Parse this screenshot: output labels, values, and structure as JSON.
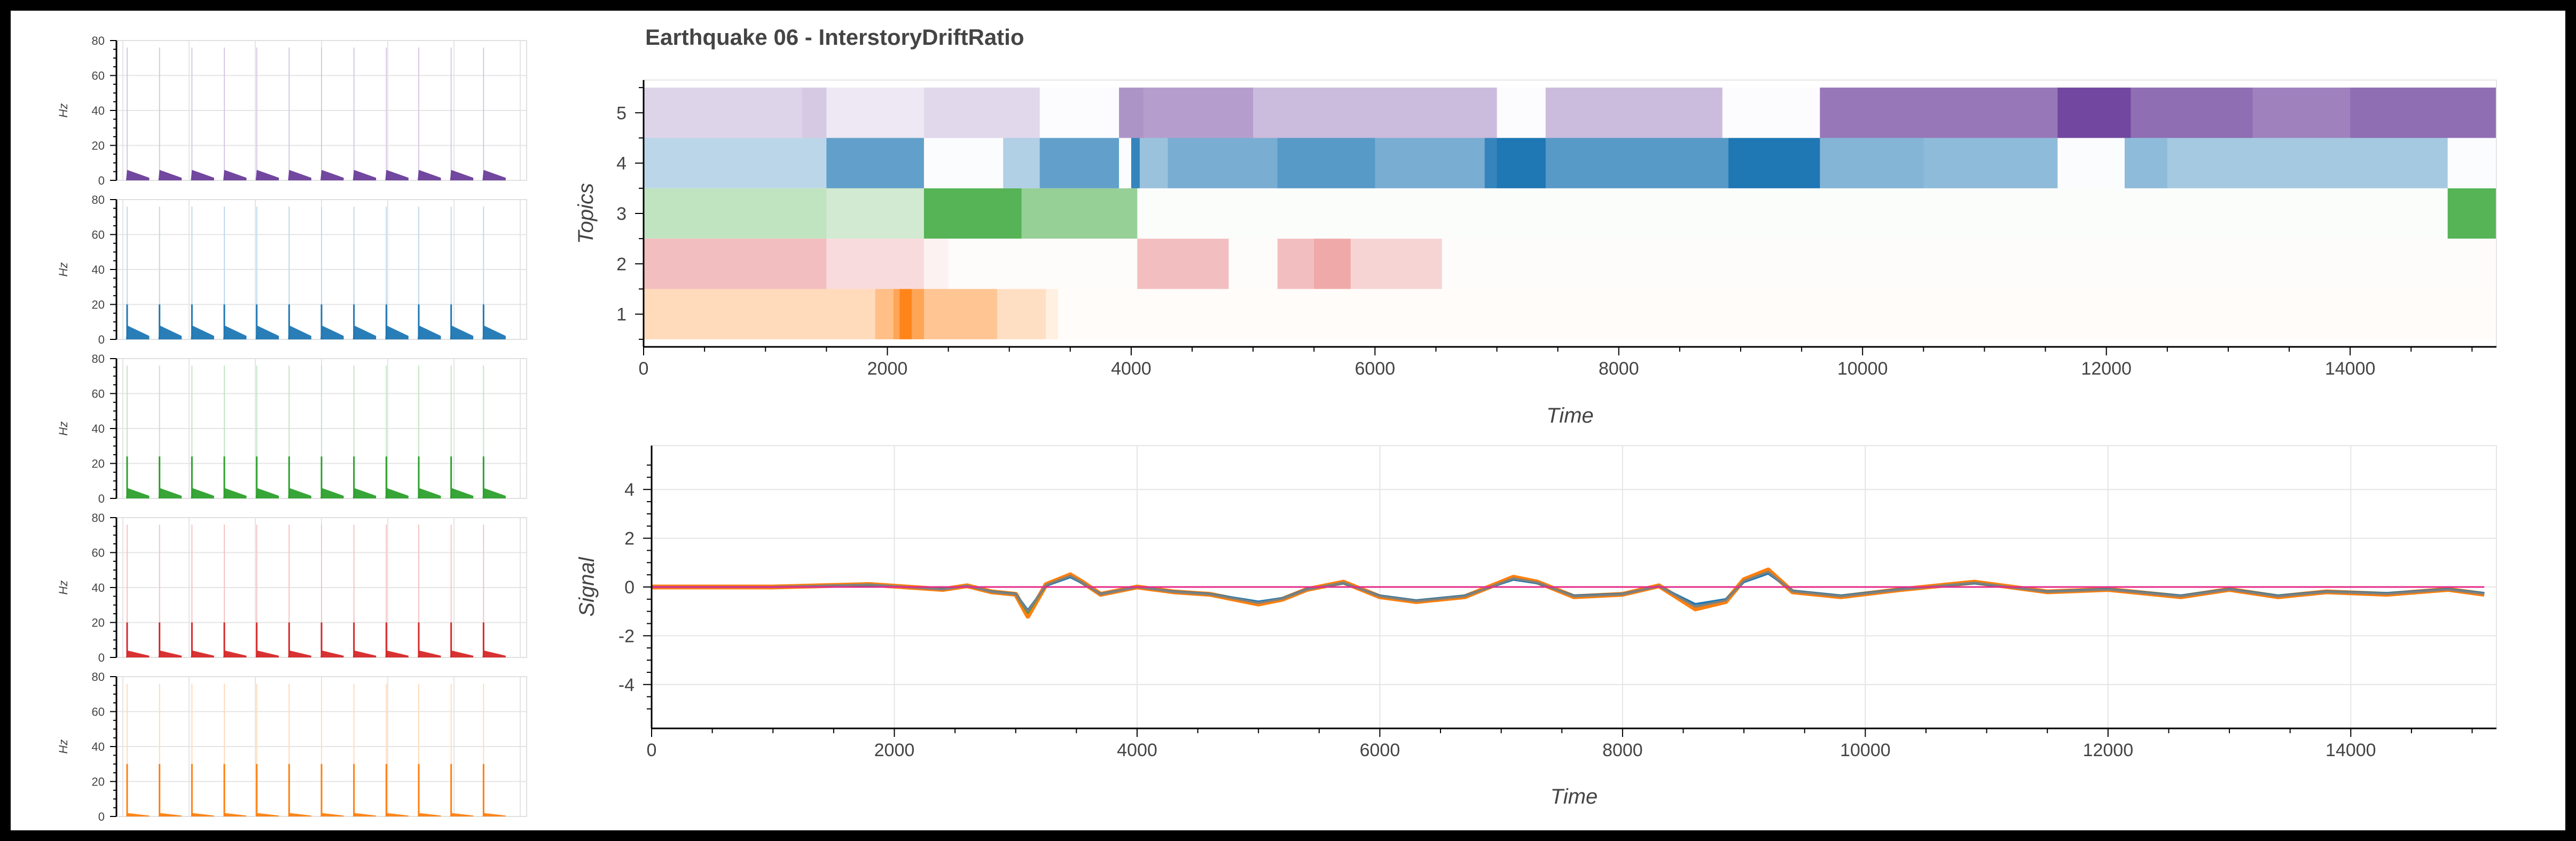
{
  "colors": {
    "topic1": "#ff7f0e",
    "topic2": "#d62728",
    "topic3": "#2ca02c",
    "topic4": "#1f77b4",
    "topic5": "#6a3d9a",
    "signal_orange": "#ff7f0e",
    "signal_blue": "#1f77b4",
    "signal_green": "#2ca02c",
    "signal_gray": "#808080",
    "signal_pink": "#e7298a",
    "grid": "#e5e5e5",
    "axis": "#000000",
    "text": "#444444"
  },
  "chart_data": [
    {
      "id": "topics",
      "type": "heatmap",
      "title": "Earthquake 06 - InterstoryDriftRatio",
      "xlabel": "Time",
      "ylabel": "Topics",
      "xlim": [
        0,
        15200
      ],
      "ylim": [
        0.35,
        5.65
      ],
      "xticks": [
        0,
        2000,
        4000,
        6000,
        8000,
        10000,
        12000,
        14000
      ],
      "yticks": [
        1,
        2,
        3,
        4,
        5
      ],
      "rows": [
        {
          "topic": 1,
          "color_key": "topic1",
          "segments": [
            [
              0,
              1900,
              0.28
            ],
            [
              1900,
              2050,
              0.5
            ],
            [
              2050,
              2100,
              0.7
            ],
            [
              2100,
              2200,
              0.95
            ],
            [
              2200,
              2300,
              0.7
            ],
            [
              2300,
              2900,
              0.45
            ],
            [
              2900,
              3300,
              0.25
            ],
            [
              3300,
              3400,
              0.12
            ],
            [
              3400,
              15200,
              0.02
            ]
          ]
        },
        {
          "topic": 2,
          "color_key": "topic2",
          "segments": [
            [
              0,
              1500,
              0.3
            ],
            [
              1500,
              2300,
              0.16
            ],
            [
              2300,
              2500,
              0.06
            ],
            [
              2500,
              4050,
              0.02
            ],
            [
              4050,
              4800,
              0.3
            ],
            [
              4800,
              5200,
              0.02
            ],
            [
              5200,
              5500,
              0.3
            ],
            [
              5500,
              5800,
              0.4
            ],
            [
              5800,
              6550,
              0.2
            ],
            [
              6550,
              15200,
              0.02
            ]
          ]
        },
        {
          "topic": 3,
          "color_key": "topic3",
          "segments": [
            [
              0,
              1500,
              0.3
            ],
            [
              1500,
              2300,
              0.22
            ],
            [
              2300,
              2600,
              0.8
            ],
            [
              2600,
              3100,
              0.8
            ],
            [
              3100,
              4050,
              0.5
            ],
            [
              4050,
              14800,
              0.02
            ],
            [
              14800,
              15200,
              0.8
            ]
          ]
        },
        {
          "topic": 4,
          "color_key": "topic4",
          "segments": [
            [
              0,
              1500,
              0.3
            ],
            [
              1500,
              2300,
              0.7
            ],
            [
              2300,
              2950,
              0.02
            ],
            [
              2950,
              3250,
              0.35
            ],
            [
              3250,
              3900,
              0.7
            ],
            [
              3900,
              4000,
              0.02
            ],
            [
              4000,
              4070,
              0.9
            ],
            [
              4070,
              4300,
              0.45
            ],
            [
              4300,
              5200,
              0.6
            ],
            [
              5200,
              6000,
              0.75
            ],
            [
              6000,
              6900,
              0.6
            ],
            [
              6900,
              7000,
              0.9
            ],
            [
              7000,
              7400,
              1.0
            ],
            [
              7400,
              8900,
              0.75
            ],
            [
              8900,
              9650,
              1.0
            ],
            [
              9650,
              10500,
              0.55
            ],
            [
              10500,
              11600,
              0.5
            ],
            [
              11600,
              12150,
              0.02
            ],
            [
              12150,
              12500,
              0.5
            ],
            [
              12500,
              14800,
              0.4
            ],
            [
              14800,
              15200,
              0.02
            ]
          ]
        },
        {
          "topic": 5,
          "color_key": "topic5",
          "segments": [
            [
              0,
              1300,
              0.22
            ],
            [
              1300,
              1500,
              0.28
            ],
            [
              1500,
              2300,
              0.12
            ],
            [
              2300,
              3250,
              0.2
            ],
            [
              3250,
              3900,
              0.02
            ],
            [
              3900,
              4100,
              0.55
            ],
            [
              4100,
              5000,
              0.5
            ],
            [
              5000,
              7000,
              0.35
            ],
            [
              7000,
              7400,
              0.02
            ],
            [
              7400,
              8850,
              0.35
            ],
            [
              8850,
              9650,
              0.02
            ],
            [
              9650,
              11600,
              0.7
            ],
            [
              11600,
              12200,
              0.95
            ],
            [
              12200,
              13200,
              0.75
            ],
            [
              13200,
              14000,
              0.65
            ],
            [
              14000,
              15200,
              0.75
            ]
          ]
        }
      ]
    },
    {
      "id": "signal",
      "type": "line",
      "xlabel": "Time",
      "ylabel": "Signal",
      "xlim": [
        0,
        15200
      ],
      "ylim": [
        -5.8,
        5.8
      ],
      "xticks": [
        0,
        2000,
        4000,
        6000,
        8000,
        10000,
        12000,
        14000
      ],
      "yticks": [
        -4,
        -2,
        0,
        2,
        4
      ],
      "x": [
        0,
        1000,
        1800,
        2400,
        2600,
        2800,
        3000,
        3100,
        3250,
        3450,
        3550,
        3700,
        4000,
        4300,
        4600,
        5000,
        5200,
        5400,
        5700,
        6000,
        6300,
        6700,
        7100,
        7300,
        7600,
        8000,
        8300,
        8600,
        8850,
        9000,
        9200,
        9400,
        9800,
        10300,
        10900,
        11500,
        12000,
        12600,
        13000,
        13400,
        13800,
        14300,
        14800,
        15100
      ],
      "series": [
        {
          "color_key": "signal_orange",
          "y": [
            0,
            0,
            0.1,
            -0.1,
            0.05,
            -0.2,
            -0.3,
            -1.2,
            0.1,
            0.5,
            0.2,
            -0.3,
            0.0,
            -0.2,
            -0.3,
            -0.7,
            -0.5,
            -0.1,
            0.2,
            -0.4,
            -0.6,
            -0.4,
            0.4,
            0.2,
            -0.4,
            -0.3,
            0.05,
            -0.9,
            -0.6,
            0.3,
            0.7,
            -0.2,
            -0.4,
            -0.1,
            0.2,
            -0.2,
            -0.1,
            -0.4,
            -0.1,
            -0.4,
            -0.2,
            -0.3,
            -0.1,
            -0.3
          ]
        },
        {
          "color_key": "signal_blue",
          "y": [
            0,
            0,
            0.08,
            -0.08,
            0.04,
            -0.18,
            -0.28,
            -0.95,
            0.05,
            0.4,
            0.15,
            -0.28,
            0.0,
            -0.18,
            -0.28,
            -0.6,
            -0.45,
            -0.08,
            0.15,
            -0.35,
            -0.55,
            -0.35,
            0.3,
            0.15,
            -0.35,
            -0.28,
            0.03,
            -0.7,
            -0.5,
            0.2,
            0.55,
            -0.15,
            -0.35,
            -0.08,
            0.15,
            -0.18,
            -0.08,
            -0.35,
            -0.08,
            -0.35,
            -0.18,
            -0.25,
            -0.08,
            -0.25
          ]
        },
        {
          "color_key": "signal_green",
          "y": [
            0,
            0,
            0.09,
            -0.09,
            0.05,
            -0.2,
            -0.3,
            -1.05,
            0.08,
            0.45,
            0.18,
            -0.3,
            0.0,
            -0.2,
            -0.3,
            -0.65,
            -0.48,
            -0.1,
            0.18,
            -0.38,
            -0.58,
            -0.38,
            0.35,
            0.18,
            -0.38,
            -0.3,
            0.04,
            -0.8,
            -0.55,
            0.25,
            0.62,
            -0.18,
            -0.38,
            -0.1,
            0.18,
            -0.2,
            -0.1,
            -0.38,
            -0.1,
            -0.38,
            -0.2,
            -0.28,
            -0.1,
            -0.28
          ]
        },
        {
          "color_key": "signal_gray",
          "y": [
            0,
            0,
            0.1,
            -0.1,
            0.05,
            -0.2,
            -0.3,
            -1.0,
            0.08,
            0.45,
            0.18,
            -0.3,
            0.0,
            -0.2,
            -0.3,
            -0.65,
            -0.48,
            -0.1,
            0.18,
            -0.38,
            -0.58,
            -0.38,
            0.35,
            0.18,
            -0.38,
            -0.3,
            0.04,
            -0.8,
            -0.55,
            0.25,
            0.62,
            -0.18,
            -0.38,
            -0.1,
            0.18,
            -0.2,
            -0.1,
            -0.38,
            -0.1,
            -0.38,
            -0.2,
            -0.28,
            -0.1,
            -0.28
          ]
        },
        {
          "color_key": "signal_pink",
          "y": [
            0,
            0,
            0,
            0,
            0,
            0,
            0,
            0,
            0,
            0,
            0,
            0,
            0,
            0,
            0,
            0,
            0,
            0,
            0,
            0,
            0,
            0,
            0,
            0,
            0,
            0,
            0,
            0,
            0,
            0,
            0,
            0,
            0,
            0,
            0,
            0,
            0,
            0,
            0,
            0,
            0,
            0,
            0,
            0
          ]
        }
      ]
    },
    {
      "id": "spectrograms",
      "type": "line",
      "ylabel": "Hz",
      "ylim": [
        0,
        80
      ],
      "yticks": [
        0,
        20,
        40,
        60,
        80
      ],
      "panels": [
        {
          "color_key": "topic5",
          "peak_hz": 6,
          "spike_hz": 0,
          "pulses": 12
        },
        {
          "color_key": "topic4",
          "peak_hz": 8,
          "spike_hz": 20,
          "pulses": 12
        },
        {
          "color_key": "topic3",
          "peak_hz": 6,
          "spike_hz": 24,
          "pulses": 12
        },
        {
          "color_key": "topic2",
          "peak_hz": 4,
          "spike_hz": 20,
          "pulses": 12
        },
        {
          "color_key": "topic1",
          "peak_hz": 2,
          "spike_hz": 30,
          "pulses": 12
        }
      ]
    }
  ]
}
